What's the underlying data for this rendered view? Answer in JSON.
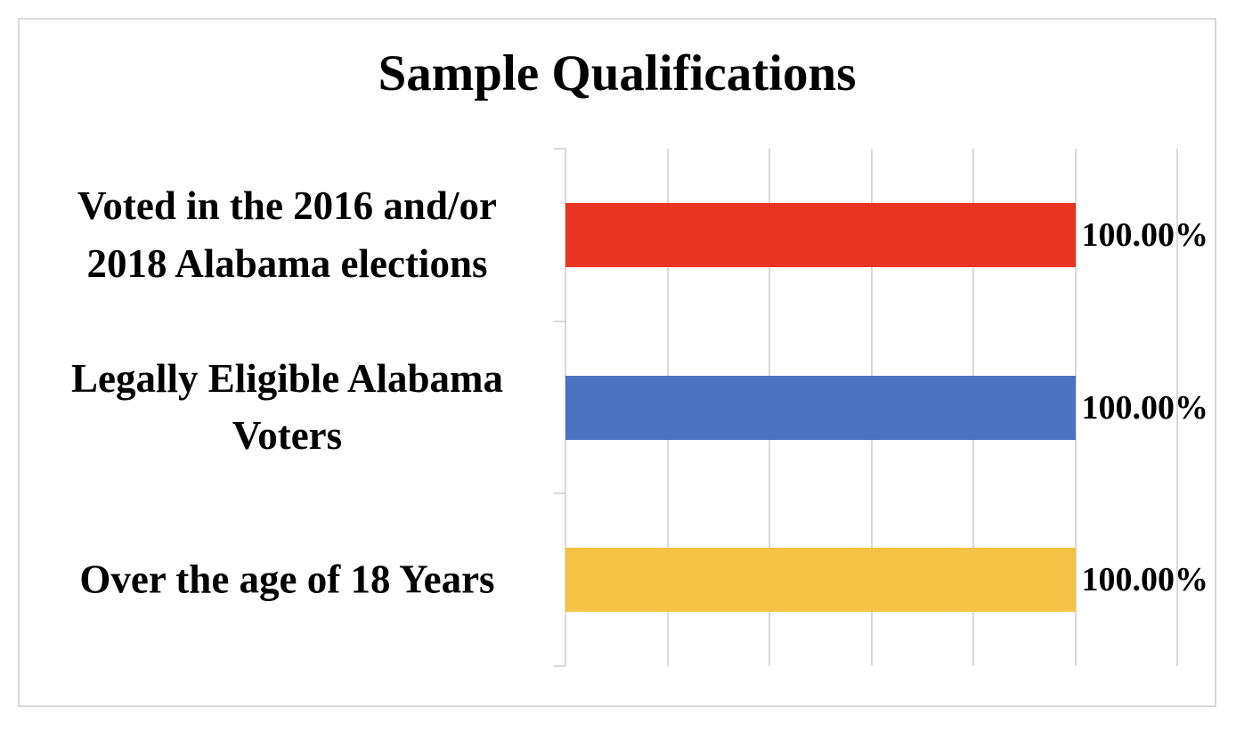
{
  "chart_data": {
    "type": "bar",
    "orientation": "horizontal",
    "title": "Sample Qualifications",
    "categories": [
      "Voted in the 2016 and/or\n2018 Alabama elections",
      "Legally Eligible Alabama\nVoters",
      "Over the age of 18 Years"
    ],
    "values": [
      100,
      100,
      100
    ],
    "unit": "%",
    "value_labels": [
      "100.00%",
      "100.00%",
      "100.00%"
    ],
    "bar_colors": [
      "#e93323",
      "#4c73bf",
      "#f3c245"
    ],
    "xlim": [
      0,
      120
    ],
    "gridlines_percent": [
      0,
      20,
      40,
      60,
      80,
      100,
      120
    ],
    "gridline_step_percent": 20,
    "grid_color": "#d9d9d9",
    "frame_color": "#d9d9d9",
    "text_color": "#000000",
    "background_color": "#ffffff",
    "legend": "none",
    "xlabel": "",
    "ylabel": ""
  }
}
